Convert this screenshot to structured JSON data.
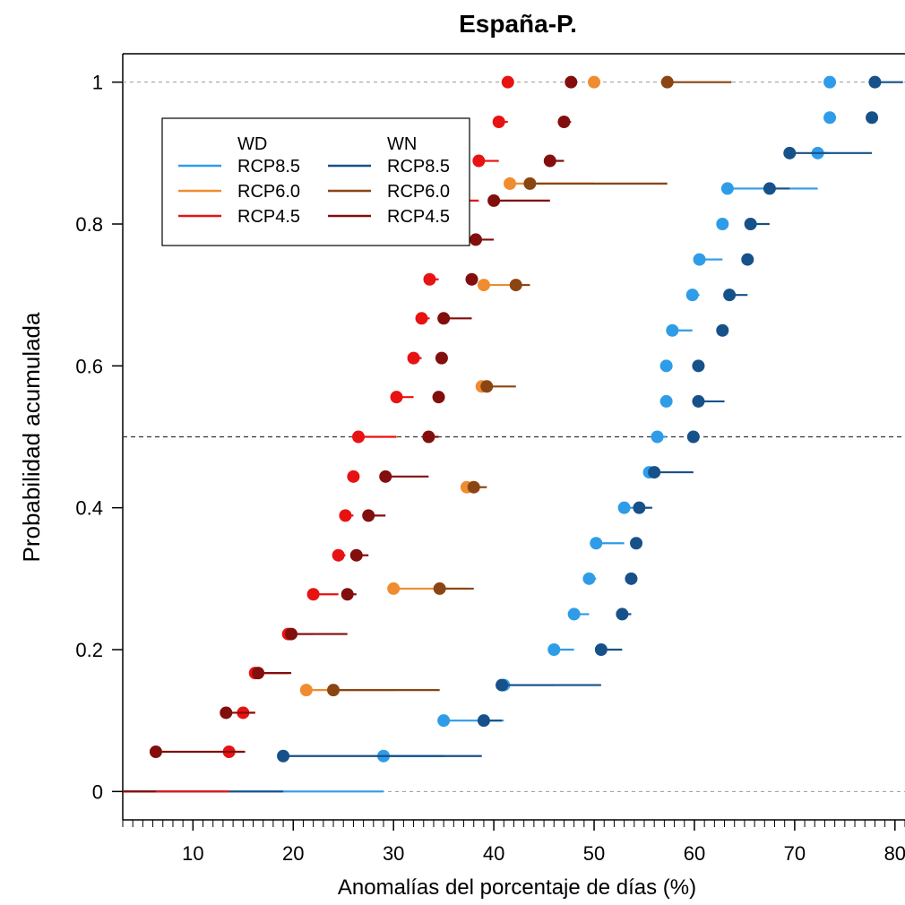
{
  "chart_data": {
    "type": "scatter",
    "title": "España-P.",
    "xlabel": "Anomalías del porcentaje de días (%)",
    "ylabel": "Probabilidad acumulada",
    "xlim": [
      3,
      81
    ],
    "ylim": [
      -0.04,
      1.04
    ],
    "x_ticks": [
      10,
      20,
      30,
      40,
      50,
      60,
      70,
      80
    ],
    "y_ticks": [
      0,
      0.2,
      0.4,
      0.6,
      0.8,
      1
    ],
    "y_tick_labels": [
      "0",
      "0.2",
      "0.4",
      "0.6",
      "0.8",
      "1"
    ],
    "reference_lines_y": [
      0,
      0.5,
      1
    ],
    "legend": {
      "placement": "top-left",
      "groups": [
        {
          "title": "WD",
          "entries": [
            "RCP8.5",
            "RCP6.0",
            "RCP4.5"
          ]
        },
        {
          "title": "WN",
          "entries": [
            "RCP8.5",
            "RCP6.0",
            "RCP4.5"
          ]
        }
      ]
    },
    "series": [
      {
        "group": "WD",
        "name": "RCP8.5",
        "color": "#2f9ce8",
        "y": [
          0,
          0.05,
          0.1,
          0.15,
          0.2,
          0.25,
          0.3,
          0.35,
          0.4,
          0.45,
          0.5,
          0.55,
          0.6,
          0.65,
          0.7,
          0.75,
          0.8,
          0.85,
          0.9,
          0.95,
          1
        ],
        "x": [
          3,
          29,
          35,
          41,
          46,
          48,
          49.5,
          50.2,
          53,
          55.5,
          56.3,
          57.2,
          57.2,
          57.8,
          59.8,
          60.5,
          62.8,
          63.3,
          72.3,
          73.5,
          73.5
        ]
      },
      {
        "group": "WN",
        "name": "RCP8.5",
        "color": "#16518a",
        "y": [
          0,
          0.05,
          0.1,
          0.15,
          0.2,
          0.25,
          0.3,
          0.35,
          0.4,
          0.45,
          0.5,
          0.55,
          0.6,
          0.65,
          0.7,
          0.75,
          0.8,
          0.85,
          0.9,
          0.95,
          1
        ],
        "x": [
          3,
          19,
          39,
          40.8,
          50.7,
          52.8,
          53.7,
          54.2,
          54.5,
          56,
          59.9,
          60.4,
          60.4,
          62.8,
          63.5,
          65.3,
          65.6,
          67.5,
          69.5,
          77.7,
          78
        ],
        "range_to": [
          null,
          38.8,
          40.8,
          50.7,
          52.8,
          53.7,
          53.7,
          54.2,
          55.8,
          59.9,
          59.9,
          63,
          60.4,
          63.2,
          65.3,
          65.3,
          67.5,
          69.5,
          77.7,
          77.7,
          80.8
        ]
      },
      {
        "group": "WD",
        "name": "RCP6.0",
        "color": "#f08c30",
        "y": [
          0.143,
          0.286,
          0.429,
          0.571,
          0.714,
          0.857,
          1
        ],
        "x": [
          21.3,
          30,
          37.3,
          38.8,
          39,
          41.6,
          50
        ]
      },
      {
        "group": "WN",
        "name": "RCP6.0",
        "color": "#8b4513",
        "y": [
          0.143,
          0.286,
          0.429,
          0.571,
          0.714,
          0.857,
          1
        ],
        "x": [
          24,
          34.6,
          38,
          39.3,
          42.2,
          43.6,
          57.3
        ],
        "range_to": [
          34.6,
          38,
          39.3,
          42.2,
          43.6,
          57.3,
          63.7
        ]
      },
      {
        "group": "WD",
        "name": "RCP4.5",
        "color": "#e81212",
        "y": [
          0,
          0.056,
          0.111,
          0.167,
          0.222,
          0.278,
          0.333,
          0.389,
          0.444,
          0.5,
          0.556,
          0.611,
          0.667,
          0.722,
          0.778,
          0.833,
          0.889,
          0.944,
          1
        ],
        "x": [
          3,
          13.6,
          15,
          16.2,
          19.5,
          22,
          24.5,
          25.2,
          26,
          26.5,
          30.3,
          32,
          32.8,
          33.6,
          34.5,
          36,
          38.5,
          40.5,
          41.4
        ]
      },
      {
        "group": "WN",
        "name": "RCP4.5",
        "color": "#820e0e",
        "y": [
          0,
          0.056,
          0.111,
          0.167,
          0.222,
          0.278,
          0.333,
          0.389,
          0.444,
          0.5,
          0.556,
          0.611,
          0.667,
          0.722,
          0.778,
          0.833,
          0.889,
          0.944,
          1
        ],
        "x": [
          3,
          6.3,
          13.3,
          16.5,
          19.8,
          25.4,
          26.3,
          27.5,
          29.2,
          33.5,
          34.5,
          34.8,
          35,
          37.8,
          38.2,
          40,
          45.6,
          47,
          47.7
        ],
        "range_to": [
          null,
          15.2,
          16.2,
          19.8,
          25.4,
          26.3,
          27.5,
          29.2,
          33.5,
          34.5,
          34.8,
          34.8,
          37.8,
          38.2,
          40,
          45.6,
          47,
          47.7,
          47.7
        ]
      }
    ]
  }
}
